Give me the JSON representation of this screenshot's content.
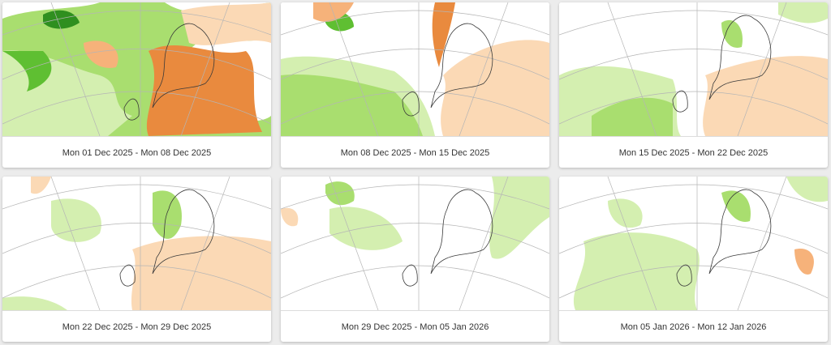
{
  "colors": {
    "wet_light": "#d4efb0",
    "wet_mid": "#a9de6f",
    "wet_dark": "#5fbf32",
    "wet_deep": "#2f8f1f",
    "dry_light": "#fbd9b5",
    "dry_mid": "#f6b27a",
    "dry_dark": "#e98a3e",
    "land_line": "#3a3a3a",
    "graticule": "#b5b5b5"
  },
  "maps": [
    {
      "label": "Mon 01 Dec 2025 - Mon 08 Dec 2025",
      "pattern": "strong-wet-west-dry-east"
    },
    {
      "label": "Mon 08 Dec 2025 - Mon 15 Dec 2025",
      "pattern": "wet-west-dry-east"
    },
    {
      "label": "Mon 15 Dec 2025 - Mon 22 Dec 2025",
      "pattern": "scattered-wet-dry-east"
    },
    {
      "label": "Mon 22 Dec 2025 - Mon 29 Dec 2025",
      "pattern": "wet-north-dry-central"
    },
    {
      "label": "Mon 29 Dec 2025 - Mon 05 Jan 2026",
      "pattern": "weak-signal"
    },
    {
      "label": "Mon 05 Jan 2026 - Mon 12 Jan 2026",
      "pattern": "wet-central-atlantic"
    }
  ]
}
